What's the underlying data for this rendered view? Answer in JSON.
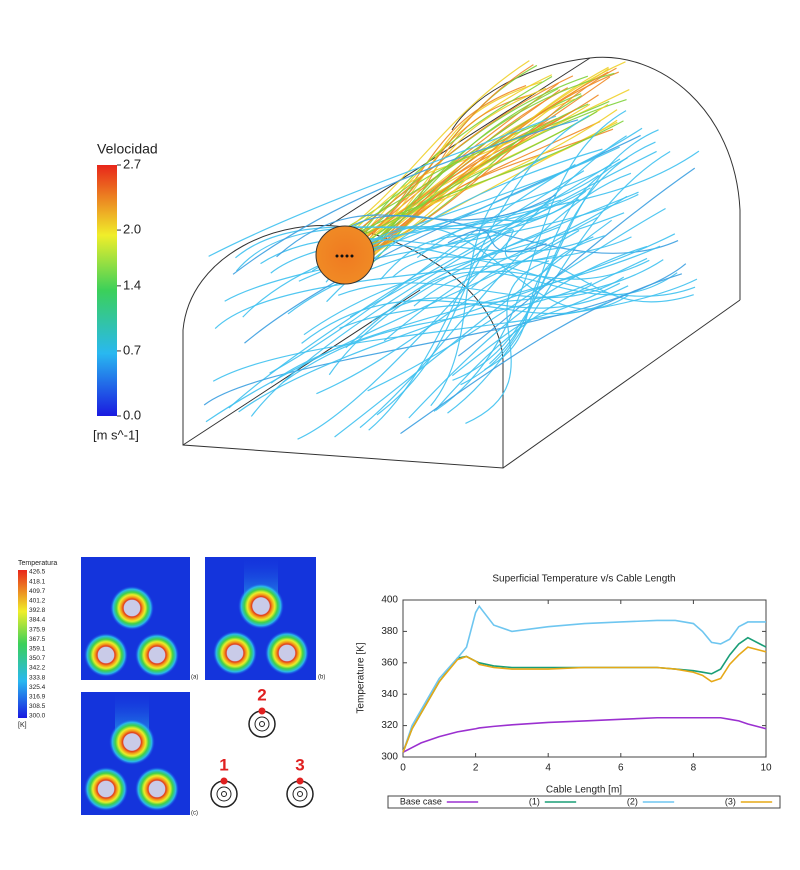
{
  "velocity_colorbar": {
    "title": "Velocidad",
    "unit": "[m s^-1]",
    "lim": [
      0,
      2.7
    ],
    "ticks": [
      2.7,
      {
        "value": 2,
        "label": "2.0"
      },
      1.4,
      0.7,
      {
        "value": 0,
        "label": "0.0"
      }
    ]
  },
  "temperature_colorbar": {
    "title": "Temperatura",
    "unit": "[K]",
    "ticks": [
      426.5,
      418.1,
      409.7,
      401.2,
      392.8,
      384.4,
      375.9,
      367.5,
      359.1,
      350.7,
      342.2,
      333.8,
      325.4,
      316.9,
      308.5,
      {
        "value": 300,
        "label": "300.0"
      }
    ]
  },
  "figure": {
    "panel_labels": [
      "(a)",
      "(b)",
      "(c)"
    ],
    "cable_labels": [
      "1",
      "2",
      "3"
    ]
  },
  "chart_data": {
    "type": "line",
    "title": "Superficial Temperature v/s Cable Length",
    "x_label": "Cable Length [m]",
    "y_label": "Temperature [K]",
    "x": [
      0,
      0.25,
      0.5,
      1,
      1.5,
      1.75,
      2,
      2.1,
      2.5,
      3,
      4,
      5,
      6,
      7,
      7.5,
      8,
      8.25,
      8.5,
      8.75,
      9,
      9.25,
      9.5,
      10
    ],
    "xlim": [
      0,
      10
    ],
    "xticks": [
      0,
      2,
      4,
      6,
      8,
      10
    ],
    "ylim": [
      300,
      400
    ],
    "yticks": [
      300,
      320,
      340,
      360,
      380,
      400
    ],
    "legend": "bottom",
    "series": [
      {
        "name": "Base case",
        "color": "#9b30d0",
        "values": [
          303,
          306,
          309,
          313,
          316,
          317,
          318,
          318.5,
          319.5,
          320.5,
          322,
          323,
          324,
          325,
          325,
          325,
          325,
          325,
          325,
          324,
          323,
          321,
          318
        ]
      },
      {
        "name": "(1)",
        "color": "#1a9e77",
        "values": [
          303,
          318,
          328,
          348,
          363,
          364,
          361,
          360,
          358,
          357,
          357,
          357,
          357,
          357,
          356,
          355,
          354,
          353,
          356,
          365,
          372,
          376,
          370
        ]
      },
      {
        "name": "(2)",
        "color": "#6ec6f0",
        "values": [
          303,
          320,
          330,
          350,
          363,
          370,
          392,
          396,
          384,
          380,
          383,
          385,
          386,
          387,
          387,
          385,
          380,
          373,
          372,
          375,
          383,
          386,
          386
        ]
      },
      {
        "name": "(3)",
        "color": "#e6a817",
        "values": [
          303,
          318,
          328,
          348,
          362,
          364,
          361,
          359,
          357,
          356,
          356,
          357,
          357,
          357,
          356,
          354,
          352,
          348,
          350,
          359,
          365,
          370,
          367
        ]
      }
    ]
  }
}
